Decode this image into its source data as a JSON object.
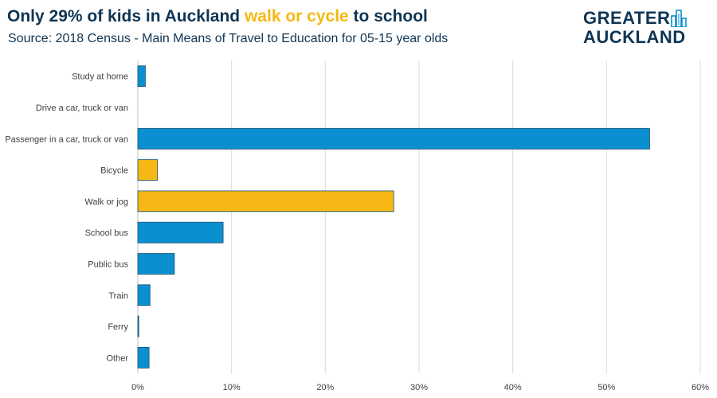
{
  "header": {
    "title_pre": "Only 29% of kids in Auckland ",
    "title_highlight": "walk or cycle",
    "title_post": " to school",
    "subtitle": "Source: 2018 Census - Main Means of Travel to Education for 05-15 year olds"
  },
  "logo": {
    "line1": "GREATER",
    "line2": "AUCKLAND",
    "icon": "city-skyline-icon"
  },
  "colors": {
    "title": "#0f3554",
    "highlight": "#f5b814",
    "bar_default": "#0a8fd1",
    "bar_highlight": "#f5b814",
    "bar_border": "#1d4e6b",
    "grid": "#d9d9d9"
  },
  "chart_data": {
    "type": "bar",
    "orientation": "horizontal",
    "title": "Only 29% of kids in Auckland walk or cycle to school",
    "subtitle": "Source: 2018 Census - Main Means of Travel to Education for 05-15 year olds",
    "categories": [
      "Study at home",
      "Drive a car, truck or van",
      "Passenger in a car, truck or van",
      "Bicycle",
      "Walk or jog",
      "School bus",
      "Public bus",
      "Train",
      "Ferry",
      "Other"
    ],
    "values": [
      0.8,
      0,
      54.6,
      2.1,
      27.3,
      9.1,
      3.9,
      1.3,
      0.1,
      1.2
    ],
    "highlighted": [
      "Bicycle",
      "Walk or jog"
    ],
    "xlim": [
      0,
      60
    ],
    "xticks": [
      0,
      10,
      20,
      30,
      40,
      50,
      60
    ],
    "xtick_labels": [
      "0%",
      "10%",
      "20%",
      "30%",
      "40%",
      "50%",
      "60%"
    ],
    "grid": "vertical",
    "legend": "none",
    "xlabel": "",
    "ylabel": ""
  }
}
